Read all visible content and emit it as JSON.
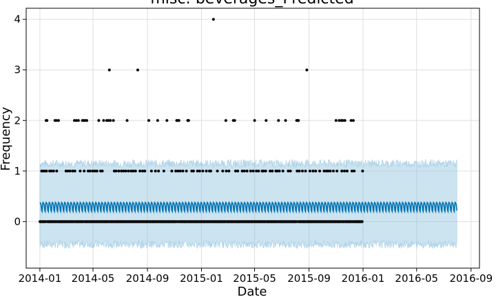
{
  "chart_data": {
    "type": "scatter",
    "title": "misc: beverages_Predicted",
    "xlabel": "Date",
    "ylabel": "Frequency",
    "grid": true,
    "legend": "none",
    "x_range": [
      "2013-12-01",
      "2016-09-20"
    ],
    "y_range": [
      -0.92,
      4.22
    ],
    "x_tick_labels": [
      "2014-01",
      "2014-05",
      "2014-09",
      "2015-01",
      "2015-05",
      "2015-09",
      "2016-01",
      "2016-05",
      "2016-09"
    ],
    "x_tick_dates": [
      "2014-01-01",
      "2014-05-01",
      "2014-09-01",
      "2015-01-01",
      "2015-05-01",
      "2015-09-01",
      "2016-01-01",
      "2016-05-01",
      "2016-09-01"
    ],
    "y_tick_labels": [
      "0",
      "1",
      "2",
      "3",
      "4"
    ],
    "y_tick_values": [
      0,
      1,
      2,
      3,
      4
    ],
    "colors": {
      "observed": "#000000",
      "forecast_line": "#0072B2",
      "uncertainty_fill": "#8ec0de",
      "grid": "#dddddd"
    },
    "observed_range": [
      "2014-01-01",
      "2015-12-31"
    ],
    "forecast_range": [
      "2014-01-01",
      "2016-07-31"
    ],
    "forecast": {
      "weekly_cycle_low": 0.2,
      "weekly_cycle_high": 0.38,
      "upper_band_approx": 1.15,
      "lower_band_approx": -0.45
    },
    "series": [
      {
        "type": "scatter",
        "values_by_count": {
          "0": "every day 2014-01-01 to 2015-12-31 except listed below",
          "1": [
            "2014-01-05",
            "2014-01-08",
            "2014-01-12",
            "2014-01-16",
            "2014-01-23",
            "2014-01-27",
            "2014-02-01",
            "2014-02-04",
            "2014-02-08",
            "2014-02-12",
            "2014-03-01",
            "2014-03-05",
            "2014-03-10",
            "2014-03-16",
            "2014-03-21",
            "2014-04-02",
            "2014-04-07",
            "2014-04-11",
            "2014-04-20",
            "2014-04-24",
            "2014-04-30",
            "2014-05-05",
            "2014-05-10",
            "2014-05-18",
            "2014-05-22",
            "2014-06-18",
            "2014-06-22",
            "2014-06-28",
            "2014-07-04",
            "2014-07-09",
            "2014-07-14",
            "2014-07-20",
            "2014-07-26",
            "2014-07-31",
            "2014-08-05",
            "2014-08-10",
            "2014-08-15",
            "2014-08-21",
            "2014-08-26",
            "2014-09-10",
            "2014-09-19",
            "2014-09-26",
            "2014-10-08",
            "2014-10-15",
            "2014-10-26",
            "2014-11-04",
            "2014-11-09",
            "2014-11-14",
            "2014-11-20",
            "2014-11-28",
            "2014-12-10",
            "2014-12-14",
            "2014-12-23",
            "2014-12-28",
            "2015-01-04",
            "2015-01-12",
            "2015-01-19",
            "2015-01-22",
            "2015-02-06",
            "2015-02-18",
            "2015-02-26",
            "2015-03-04",
            "2015-03-14",
            "2015-03-19",
            "2015-03-24",
            "2015-04-03",
            "2015-04-08",
            "2015-04-14",
            "2015-04-22",
            "2015-04-28",
            "2015-05-05",
            "2015-05-10",
            "2015-05-18",
            "2015-05-21",
            "2015-05-26",
            "2015-06-05",
            "2015-06-10",
            "2015-06-18",
            "2015-06-21",
            "2015-06-26",
            "2015-07-04",
            "2015-07-10",
            "2015-07-16",
            "2015-07-21",
            "2015-08-05",
            "2015-08-10",
            "2015-08-17",
            "2015-08-24",
            "2015-09-03",
            "2015-09-10",
            "2015-09-16",
            "2015-09-25",
            "2015-10-05",
            "2015-10-10",
            "2015-10-14",
            "2015-10-19",
            "2015-10-26",
            "2015-11-03",
            "2015-11-08",
            "2015-11-14",
            "2015-11-20",
            "2015-11-26",
            "2015-12-07",
            "2015-12-12",
            "2015-12-31"
          ],
          "2": [
            "2014-01-15",
            "2014-01-17",
            "2014-02-04",
            "2014-02-07",
            "2014-02-12",
            "2014-03-20",
            "2014-03-24",
            "2014-03-29",
            "2014-04-07",
            "2014-04-10",
            "2014-04-13",
            "2014-04-17",
            "2014-05-14",
            "2014-05-25",
            "2014-06-01",
            "2014-06-05",
            "2014-06-09",
            "2014-06-16",
            "2014-07-17",
            "2014-09-04",
            "2014-09-24",
            "2014-10-15",
            "2014-11-06",
            "2014-11-08",
            "2014-11-11",
            "2014-12-01",
            "2014-12-03",
            "2015-02-25",
            "2015-03-14",
            "2015-03-17",
            "2015-05-01",
            "2015-05-27",
            "2015-06-24",
            "2015-07-10",
            "2015-08-04",
            "2015-08-06",
            "2015-08-08",
            "2015-11-01",
            "2015-11-08",
            "2015-11-13",
            "2015-11-16",
            "2015-11-21",
            "2015-12-05",
            "2015-12-10"
          ],
          "3": [
            "2014-06-07",
            "2014-08-10",
            "2015-08-27"
          ],
          "4": [
            "2015-01-28"
          ]
        }
      }
    ]
  }
}
